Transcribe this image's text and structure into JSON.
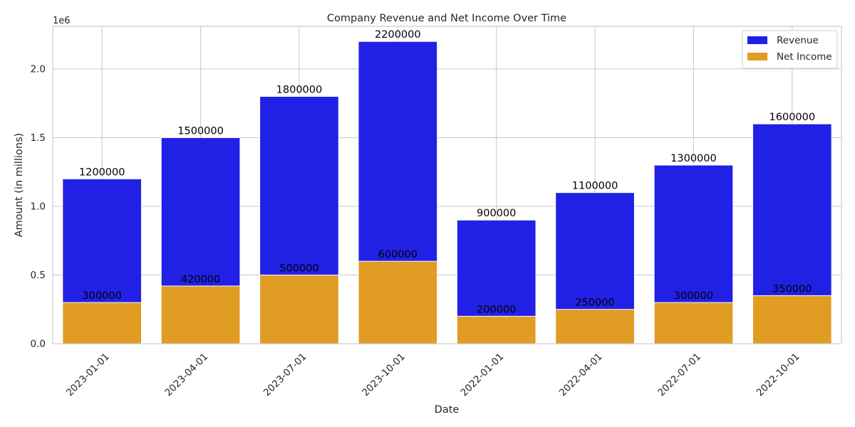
{
  "chart_data": {
    "type": "bar",
    "title": "Company Revenue and Net Income Over Time",
    "xlabel": "Date",
    "ylabel": "Amount (in millions)",
    "y_offset_label": "1e6",
    "categories": [
      "2023-01-01",
      "2023-04-01",
      "2023-07-01",
      "2023-10-01",
      "2022-01-01",
      "2022-04-01",
      "2022-07-01",
      "2022-10-01"
    ],
    "series": [
      {
        "name": "Revenue",
        "color": "#2121e6",
        "values": [
          1200000,
          1500000,
          1800000,
          2200000,
          900000,
          1100000,
          1300000,
          1600000
        ]
      },
      {
        "name": "Net Income",
        "color": "#e19c24",
        "values": [
          300000,
          420000,
          500000,
          600000,
          200000,
          250000,
          300000,
          350000
        ]
      }
    ],
    "ylim": [
      0,
      2310000
    ],
    "yticks": [
      0,
      500000,
      1000000,
      1500000,
      2000000
    ],
    "ytick_labels": [
      "0.0",
      "0.5",
      "1.0",
      "1.5",
      "2.0"
    ],
    "grid": true,
    "legend_position": "top-right",
    "overlaid_bars": true
  }
}
